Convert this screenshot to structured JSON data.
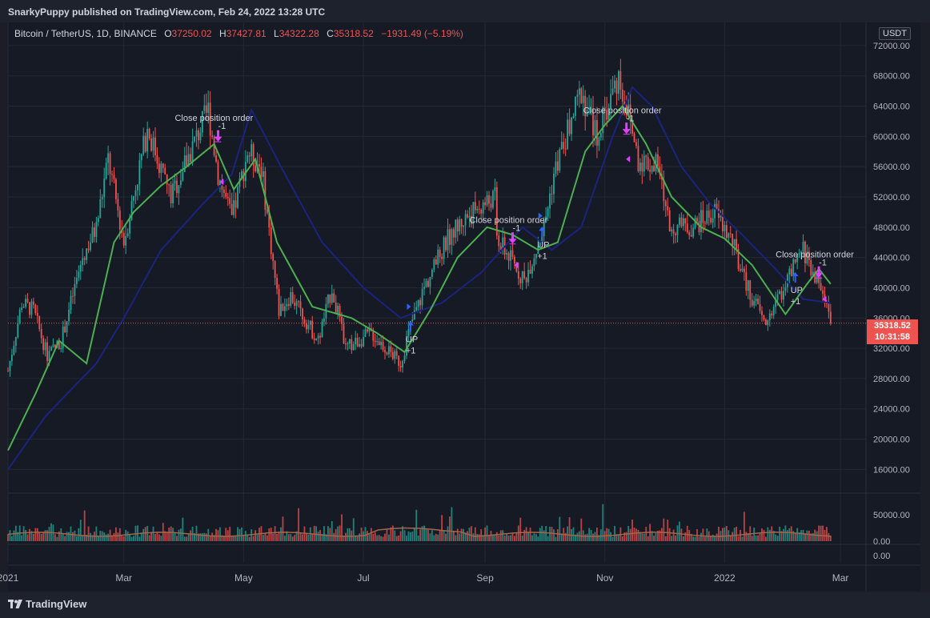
{
  "header": {
    "published": "SnarkyPuppy published on TradingView.com, Feb 24, 2022 13:28 UTC"
  },
  "legend": {
    "symbol": "Bitcoin / TetherUS, 1D, BINANCE",
    "open_label": "O",
    "open": "37250.02",
    "high_label": "H",
    "high": "37427.81",
    "low_label": "L",
    "low": "34322.28",
    "close_label": "C",
    "close": "35318.52",
    "change": "−1931.49 (−5.19%)"
  },
  "currency": "USDT",
  "last_price": {
    "price": "35318.52",
    "countdown": "10:31:58"
  },
  "footer": {
    "brand": "TradingView"
  },
  "colors": {
    "up": "#26a69a",
    "down": "#ef5350",
    "fast_line": "#4caf50",
    "slow_line": "#1a237e",
    "buy_marker": "#2962ff",
    "sell_marker": "#e040fb",
    "price_line": "#ef5350"
  },
  "chart_data": {
    "type": "candlestick",
    "y_ticks": [
      "72000.00",
      "68000.00",
      "64000.00",
      "60000.00",
      "56000.00",
      "52000.00",
      "48000.00",
      "44000.00",
      "40000.00",
      "36000.00",
      "32000.00",
      "28000.00",
      "24000.00",
      "20000.00",
      "16000.00"
    ],
    "y_range": [
      13500,
      74000
    ],
    "x_labels": [
      "2021",
      "Mar",
      "May",
      "Jul",
      "Sep",
      "Nov",
      "2022",
      "Mar"
    ],
    "x_range": [
      "2021-01-01",
      "2022-03-14"
    ],
    "price_key": [
      [
        "2021-01-01",
        29000
      ],
      [
        "2021-01-08",
        38000
      ],
      [
        "2021-01-14",
        37000
      ],
      [
        "2021-01-21",
        31000
      ],
      [
        "2021-01-28",
        33000
      ],
      [
        "2021-02-08",
        44000
      ],
      [
        "2021-02-15",
        48000
      ],
      [
        "2021-02-21",
        57000
      ],
      [
        "2021-03-01",
        46000
      ],
      [
        "2021-03-13",
        61000
      ],
      [
        "2021-03-25",
        52000
      ],
      [
        "2021-04-13",
        63500
      ],
      [
        "2021-04-18",
        55000
      ],
      [
        "2021-04-25",
        49000
      ],
      [
        "2021-05-03",
        58000
      ],
      [
        "2021-05-10",
        56000
      ],
      [
        "2021-05-19",
        37000
      ],
      [
        "2021-05-25",
        39000
      ],
      [
        "2021-06-08",
        33000
      ],
      [
        "2021-06-15",
        40000
      ],
      [
        "2021-06-22",
        32000
      ],
      [
        "2021-07-05",
        34000
      ],
      [
        "2021-07-20",
        30000
      ],
      [
        "2021-07-25",
        35000
      ],
      [
        "2021-08-01",
        40000
      ],
      [
        "2021-08-14",
        47000
      ],
      [
        "2021-08-23",
        49500
      ],
      [
        "2021-09-06",
        52000
      ],
      [
        "2021-09-07",
        46500
      ],
      [
        "2021-09-21",
        41000
      ],
      [
        "2021-10-01",
        48000
      ],
      [
        "2021-10-06",
        55000
      ],
      [
        "2021-10-20",
        66000
      ],
      [
        "2021-10-28",
        60000
      ],
      [
        "2021-11-08",
        68000
      ],
      [
        "2021-11-12",
        64000
      ],
      [
        "2021-11-18",
        57000
      ],
      [
        "2021-11-28",
        56000
      ],
      [
        "2021-12-04",
        48000
      ],
      [
        "2021-12-15",
        48000
      ],
      [
        "2021-12-27",
        50000
      ],
      [
        "2022-01-05",
        46000
      ],
      [
        "2022-01-10",
        41500
      ],
      [
        "2022-01-22",
        35000
      ],
      [
        "2022-01-24",
        36500
      ],
      [
        "2022-02-10",
        45000
      ],
      [
        "2022-02-17",
        41000
      ],
      [
        "2022-02-21",
        38500
      ],
      [
        "2022-02-24",
        35300
      ]
    ],
    "ma_fast": [
      [
        "2021-01-01",
        18500
      ],
      [
        "2021-01-15",
        26000
      ],
      [
        "2021-01-27",
        33000
      ],
      [
        "2021-02-10",
        30000
      ],
      [
        "2021-02-24",
        46000
      ],
      [
        "2021-03-06",
        50000
      ],
      [
        "2021-03-20",
        53500
      ],
      [
        "2021-04-02",
        56000
      ],
      [
        "2021-04-16",
        59000
      ],
      [
        "2021-04-26",
        53000
      ],
      [
        "2021-05-07",
        57000
      ],
      [
        "2021-05-18",
        46000
      ],
      [
        "2021-06-05",
        37500
      ],
      [
        "2021-06-25",
        36000
      ],
      [
        "2021-07-08",
        34000
      ],
      [
        "2021-07-22",
        31500
      ],
      [
        "2021-08-04",
        37000
      ],
      [
        "2021-08-18",
        44000
      ],
      [
        "2021-09-02",
        48000
      ],
      [
        "2021-09-15",
        47000
      ],
      [
        "2021-09-28",
        45000
      ],
      [
        "2021-10-08",
        46000
      ],
      [
        "2021-10-22",
        58000
      ],
      [
        "2021-11-01",
        61500
      ],
      [
        "2021-11-10",
        64000
      ],
      [
        "2021-11-22",
        59000
      ],
      [
        "2021-12-05",
        52000
      ],
      [
        "2021-12-20",
        48000
      ],
      [
        "2022-01-01",
        46500
      ],
      [
        "2022-01-15",
        43000
      ],
      [
        "2022-02-01",
        36500
      ],
      [
        "2022-02-12",
        40500
      ],
      [
        "2022-02-18",
        42500
      ],
      [
        "2022-02-24",
        40500
      ]
    ],
    "ma_slow": [
      [
        "2021-01-01",
        16000
      ],
      [
        "2021-01-20",
        23000
      ],
      [
        "2021-02-15",
        30000
      ],
      [
        "2021-03-01",
        36000
      ],
      [
        "2021-03-20",
        45000
      ],
      [
        "2021-04-10",
        51000
      ],
      [
        "2021-04-25",
        55000
      ],
      [
        "2021-05-05",
        63500
      ],
      [
        "2021-05-20",
        56000
      ],
      [
        "2021-06-10",
        46000
      ],
      [
        "2021-07-01",
        40000
      ],
      [
        "2021-07-20",
        36000
      ],
      [
        "2021-08-10",
        38000
      ],
      [
        "2021-08-30",
        42000
      ],
      [
        "2021-09-20",
        48000
      ],
      [
        "2021-10-05",
        45000
      ],
      [
        "2021-10-20",
        48000
      ],
      [
        "2021-11-05",
        60000
      ],
      [
        "2021-11-15",
        66500
      ],
      [
        "2021-11-25",
        64000
      ],
      [
        "2021-12-10",
        56000
      ],
      [
        "2021-12-25",
        51000
      ],
      [
        "2022-01-10",
        47000
      ],
      [
        "2022-01-25",
        43000
      ],
      [
        "2022-02-10",
        38500
      ],
      [
        "2022-02-24",
        38000
      ]
    ],
    "volume_axis": [
      "50000.00",
      "0.00"
    ],
    "volume_range": [
      0,
      85000
    ],
    "oscillator_axis": [
      "0.00"
    ],
    "signals": [
      {
        "date": "2021-04-18",
        "price": 59500,
        "kind": "exit",
        "text": "Close position order",
        "qty": "-1"
      },
      {
        "date": "2021-04-20",
        "price": 54000,
        "kind": "exit-arrow"
      },
      {
        "date": "2021-07-25",
        "price": 34500,
        "kind": "entry",
        "text": "UP",
        "qty": "+1"
      },
      {
        "date": "2021-07-24",
        "price": 37500,
        "kind": "entry-arrow"
      },
      {
        "date": "2021-09-15",
        "price": 46000,
        "kind": "exit",
        "text": "Close position order",
        "qty": "-1"
      },
      {
        "date": "2021-09-17",
        "price": 43000,
        "kind": "exit-arrow"
      },
      {
        "date": "2021-09-30",
        "price": 47000,
        "kind": "entry",
        "text": "UP",
        "qty": "+1"
      },
      {
        "date": "2021-09-29",
        "price": 49500,
        "kind": "entry-arrow"
      },
      {
        "date": "2021-11-12",
        "price": 60500,
        "kind": "exit",
        "text": "Close position order",
        "qty": "-1"
      },
      {
        "date": "2021-11-13",
        "price": 57000,
        "kind": "exit-arrow"
      },
      {
        "date": "2022-02-06",
        "price": 41000,
        "kind": "entry",
        "text": "UP",
        "qty": "+1"
      },
      {
        "date": "2022-02-18",
        "price": 41500,
        "kind": "exit",
        "text": "Close position order",
        "qty": "-1"
      },
      {
        "date": "2022-02-21",
        "price": 38500,
        "kind": "exit-arrow"
      }
    ],
    "last_price": 35318.52
  }
}
